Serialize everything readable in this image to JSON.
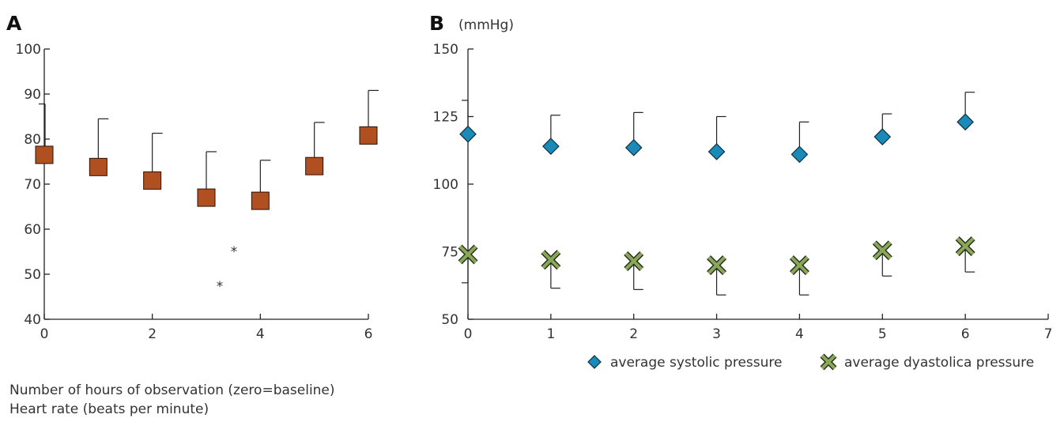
{
  "colors": {
    "square_fill": "#b04f1f",
    "diamond_fill": "#1a8ab8",
    "cross_fill": "#8aa65a",
    "axis": "#222222"
  },
  "chart_data": [
    {
      "panel": "A",
      "type": "scatter",
      "marker": "square",
      "x": [
        0,
        1,
        2,
        3,
        4,
        5,
        6
      ],
      "values": [
        76.5,
        73.8,
        70.8,
        67.0,
        66.3,
        74.0,
        80.8
      ],
      "error_upper": [
        87.8,
        84.5,
        81.3,
        77.2,
        75.3,
        83.7,
        90.8
      ],
      "ylim": [
        40,
        100
      ],
      "xlim": [
        0,
        6
      ],
      "yticks": [
        40,
        50,
        60,
        70,
        80,
        90,
        100
      ],
      "xticks": [
        0,
        2,
        4,
        6
      ],
      "annotations": [
        "*",
        "*"
      ]
    },
    {
      "panel": "B",
      "type": "scatter",
      "unit_label": "(mmHg)",
      "x": [
        0,
        1,
        2,
        3,
        4,
        5,
        6
      ],
      "ylim": [
        50,
        150
      ],
      "xlim": [
        0,
        7
      ],
      "yticks": [
        50,
        75,
        100,
        125,
        150
      ],
      "xticks": [
        0,
        1,
        2,
        3,
        4,
        5,
        6,
        7
      ],
      "legend_position": "bottom-right",
      "series": [
        {
          "name": "average systolic pressure",
          "marker": "diamond",
          "values": [
            118.5,
            114,
            113.5,
            112,
            111,
            117.5,
            123
          ],
          "error_upper": [
            131,
            125.5,
            126.5,
            125,
            123,
            126,
            134
          ]
        },
        {
          "name": "average dyastolica pressure",
          "marker": "cross",
          "values": [
            74,
            72,
            71.5,
            70,
            70,
            75.5,
            77
          ],
          "error_lower": [
            63.5,
            61.5,
            61,
            59,
            59,
            66,
            67.5
          ]
        }
      ]
    }
  ],
  "notes": {
    "line1": "Number of hours of observation (zero=baseline)",
    "line2": "Heart rate (beats per minute)"
  }
}
